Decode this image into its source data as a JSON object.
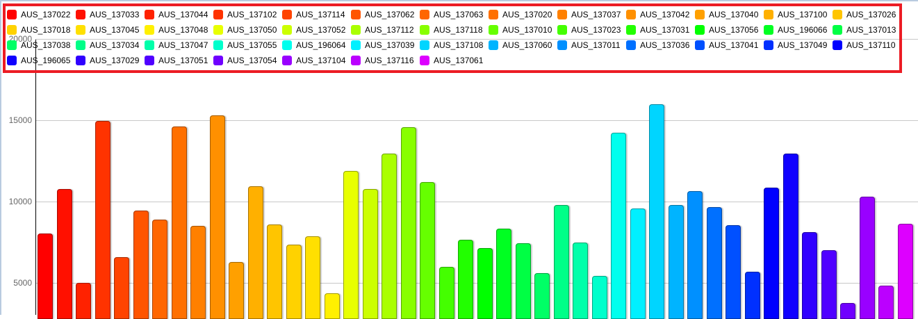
{
  "chart_data": {
    "type": "bar",
    "title": "",
    "xlabel": "",
    "ylabel": "",
    "ylim": [
      3000,
      20000
    ],
    "yticks": [
      5000,
      10000,
      15000,
      20000
    ],
    "grid": true,
    "legend_position": "top",
    "categories": [
      "AUS_137022",
      "AUS_137033",
      "AUS_137044",
      "AUS_137102",
      "AUS_137114",
      "AUS_137062",
      "AUS_137063",
      "AUS_137020",
      "AUS_137037",
      "AUS_137042",
      "AUS_137040",
      "AUS_137100",
      "AUS_137026",
      "AUS_137018",
      "AUS_137045",
      "AUS_137048",
      "AUS_137050",
      "AUS_137052",
      "AUS_137112",
      "AUS_137118",
      "AUS_137010",
      "AUS_137023",
      "AUS_137031",
      "AUS_137056",
      "AUS_196066",
      "AUS_137013",
      "AUS_137038",
      "AUS_137034",
      "AUS_137047",
      "AUS_137055",
      "AUS_196064",
      "AUS_137039",
      "AUS_137108",
      "AUS_137060",
      "AUS_137011",
      "AUS_137036",
      "AUS_137041",
      "AUS_137049",
      "AUS_137110",
      "AUS_196065",
      "AUS_137029",
      "AUS_137051",
      "AUS_137054",
      "AUS_137104",
      "AUS_137116",
      "AUS_137061"
    ],
    "values": [
      8060,
      10800,
      5030,
      14990,
      6610,
      9470,
      8920,
      14640,
      8530,
      15330,
      6310,
      10970,
      8620,
      7380,
      7880,
      4390,
      11910,
      10800,
      12950,
      14570,
      11220,
      6010,
      7680,
      7160,
      8360,
      7460,
      5620,
      9810,
      7500,
      5450,
      14260,
      9600,
      16010,
      9810,
      10670,
      9680,
      8570,
      5710,
      10880,
      12970,
      8120,
      7030,
      3790,
      10330,
      4860,
      8660
    ],
    "colors": [
      "#FF0000",
      "#FF1000",
      "#FF2200",
      "#FF3300",
      "#FF4400",
      "#FF5500",
      "#FF6600",
      "#FF7000",
      "#FF8000",
      "#FF9000",
      "#FFA000",
      "#FFB000",
      "#FFC500",
      "#FFD200",
      "#FFE000",
      "#FFF000",
      "#E8FF00",
      "#CCFF00",
      "#AAFF00",
      "#88FF00",
      "#66FF00",
      "#44FF00",
      "#22FF00",
      "#00FF00",
      "#00FF22",
      "#00FF44",
      "#00FF66",
      "#00FF88",
      "#00FFAA",
      "#00FFCC",
      "#00FFEE",
      "#00F0FF",
      "#00D5FF",
      "#00B4FF",
      "#0090FF",
      "#0070FF",
      "#0050FF",
      "#0030FF",
      "#0000FF",
      "#1000FF",
      "#3000FF",
      "#5000FF",
      "#7000FF",
      "#9900FF",
      "#BB00FF",
      "#DD00FF"
    ]
  },
  "axis": {
    "ticks": [
      {
        "label": "20000",
        "value": 20000
      },
      {
        "label": "15000",
        "value": 15000
      },
      {
        "label": "10000",
        "value": 10000
      },
      {
        "label": "5000",
        "value": 5000
      }
    ]
  },
  "highlight_box_color": "#EC1C24"
}
